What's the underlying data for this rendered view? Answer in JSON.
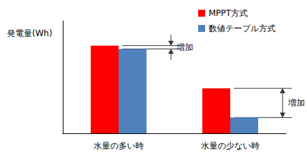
{
  "chart_data": {
    "type": "bar",
    "ylabel": "発電量(Wh)",
    "categories": [
      "水量の多い時",
      "水量の少ない時"
    ],
    "series": [
      {
        "name": "MPPT方式",
        "color": "#ff0000",
        "values": [
          78,
          40
        ]
      },
      {
        "name": "数値テーブル方式",
        "color": "#4f81bd",
        "values": [
          75,
          14
        ]
      }
    ],
    "ylim": [
      0,
      100
    ],
    "grid": false,
    "legend": "top-right",
    "tick_labels": "x",
    "annotations": [
      {
        "text": "増加",
        "category": "水量の多い時"
      },
      {
        "text": "増加",
        "category": "水量の少ない時"
      }
    ]
  }
}
